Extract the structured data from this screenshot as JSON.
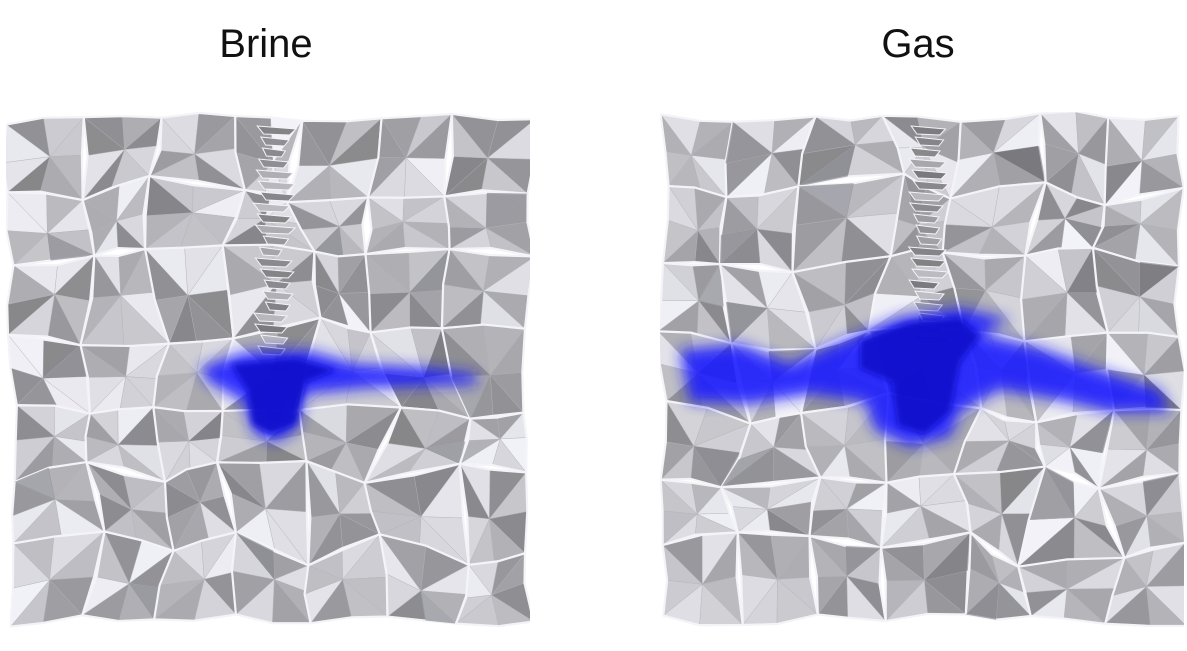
{
  "panels": [
    {
      "id": "brine",
      "title": "Brine",
      "grain_seed": 17,
      "fracture_color": "#1a1aff",
      "grain_color": "#d8d8de",
      "grain_edge_color": "#f4f4f8",
      "shadow_color": "#6e6e74"
    },
    {
      "id": "gas",
      "title": "Gas",
      "grain_seed": 53,
      "fracture_color": "#1a1aff",
      "grain_color": "#d8d8de",
      "grain_edge_color": "#f4f4f8",
      "shadow_color": "#6e6e74"
    }
  ]
}
